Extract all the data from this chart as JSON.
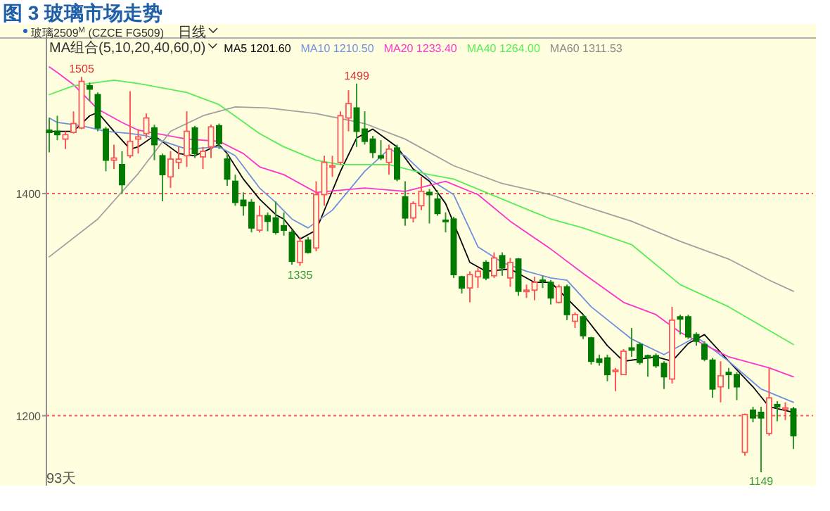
{
  "chart_data": {
    "type": "candlestick",
    "title": "图 3  玻璃市场走势",
    "categories": [
      null,
      null,
      null,
      null,
      null,
      null,
      null,
      null,
      null,
      null,
      null,
      null,
      null,
      null,
      null,
      null,
      null,
      null,
      null,
      null,
      null,
      null,
      null,
      null,
      null,
      null,
      null,
      null,
      null,
      null,
      null,
      null,
      null,
      null,
      null,
      null,
      null,
      null,
      null,
      null,
      null,
      null,
      null,
      null,
      null,
      null,
      null,
      null,
      null,
      null,
      null,
      null,
      null,
      null,
      null,
      null,
      null,
      null,
      null,
      null,
      null,
      null,
      null,
      null,
      null,
      null,
      null,
      null,
      null,
      null,
      null,
      null,
      null,
      null,
      null,
      null,
      null,
      null,
      null,
      null,
      null,
      null,
      null,
      null,
      null,
      null,
      null,
      null,
      null,
      null,
      null,
      null,
      null
    ],
    "ohlc": [
      [
        1457,
        1468,
        1437,
        1455
      ],
      [
        1456,
        1470,
        1448,
        1453
      ],
      [
        1449,
        1456,
        1440,
        1453
      ],
      [
        1455,
        1474,
        1454,
        1463
      ],
      [
        1459,
        1505,
        1458,
        1501
      ],
      [
        1497,
        1500,
        1483,
        1494
      ],
      [
        1489,
        1491,
        1456,
        1459
      ],
      [
        1458,
        1460,
        1420,
        1430
      ],
      [
        1430,
        1444,
        1422,
        1432
      ],
      [
        1426,
        1438,
        1400,
        1408
      ],
      [
        1434,
        1492,
        1432,
        1447
      ],
      [
        1449,
        1458,
        1436,
        1451
      ],
      [
        1454,
        1472,
        1450,
        1468
      ],
      [
        1459,
        1462,
        1430,
        1444
      ],
      [
        1434,
        1436,
        1393,
        1417
      ],
      [
        1415,
        1438,
        1405,
        1431
      ],
      [
        1428,
        1442,
        1422,
        1431
      ],
      [
        1434,
        1474,
        1424,
        1456
      ],
      [
        1459,
        1461,
        1432,
        1436
      ],
      [
        1433,
        1442,
        1422,
        1438
      ],
      [
        1442,
        1462,
        1432,
        1460
      ],
      [
        1461,
        1463,
        1440,
        1445
      ],
      [
        1431,
        1436,
        1407,
        1413
      ],
      [
        1411,
        1417,
        1389,
        1392
      ],
      [
        1394,
        1401,
        1380,
        1389
      ],
      [
        1392,
        1395,
        1365,
        1369
      ],
      [
        1367,
        1389,
        1365,
        1380
      ],
      [
        1380,
        1383,
        1366,
        1375
      ],
      [
        1378,
        1393,
        1363,
        1365
      ],
      [
        1371,
        1383,
        1362,
        1367
      ],
      [
        1365,
        1367,
        1336,
        1339
      ],
      [
        1338,
        1361,
        1335,
        1357
      ],
      [
        1358,
        1361,
        1346,
        1347
      ],
      [
        1351,
        1411,
        1348,
        1399
      ],
      [
        1399,
        1434,
        1389,
        1428
      ],
      [
        1424,
        1434,
        1415,
        1425
      ],
      [
        1428,
        1474,
        1426,
        1470
      ],
      [
        1468,
        1493,
        1456,
        1481
      ],
      [
        1477,
        1499,
        1442,
        1456
      ],
      [
        1458,
        1474,
        1444,
        1447
      ],
      [
        1449,
        1452,
        1432,
        1437
      ],
      [
        1434,
        1448,
        1430,
        1432
      ],
      [
        1428,
        1444,
        1417,
        1440
      ],
      [
        1441,
        1444,
        1411,
        1413
      ],
      [
        1397,
        1411,
        1371,
        1378
      ],
      [
        1378,
        1393,
        1374,
        1391
      ],
      [
        1389,
        1415,
        1385,
        1402
      ],
      [
        1401,
        1404,
        1373,
        1399
      ],
      [
        1395,
        1403,
        1380,
        1382
      ],
      [
        1376,
        1383,
        1365,
        1375
      ],
      [
        1377,
        1379,
        1324,
        1327
      ],
      [
        1325,
        1326,
        1310,
        1315
      ],
      [
        1315,
        1330,
        1302,
        1327
      ],
      [
        1325,
        1333,
        1315,
        1330
      ],
      [
        1338,
        1340,
        1322,
        1324
      ],
      [
        1326,
        1347,
        1324,
        1342
      ],
      [
        1344,
        1347,
        1326,
        1333
      ],
      [
        1324,
        1342,
        1316,
        1338
      ],
      [
        1341,
        1342,
        1308,
        1312
      ],
      [
        1312,
        1318,
        1306,
        1313
      ],
      [
        1313,
        1325,
        1304,
        1320
      ],
      [
        1322,
        1326,
        1315,
        1321
      ],
      [
        1320,
        1322,
        1300,
        1306
      ],
      [
        1302,
        1318,
        1301,
        1316
      ],
      [
        1316,
        1318,
        1286,
        1291
      ],
      [
        1285,
        1293,
        1279,
        1291
      ],
      [
        1289,
        1291,
        1269,
        1272
      ],
      [
        1270,
        1271,
        1246,
        1249
      ],
      [
        1251,
        1255,
        1245,
        1248
      ],
      [
        1252,
        1255,
        1231,
        1237
      ],
      [
        1240,
        1243,
        1222,
        1241
      ],
      [
        1237,
        1260,
        1237,
        1258
      ],
      [
        1261,
        1279,
        1253,
        1259
      ],
      [
        1264,
        1266,
        1246,
        1248
      ],
      [
        1254,
        1255,
        1235,
        1252
      ],
      [
        1254,
        1256,
        1243,
        1245
      ],
      [
        1247,
        1249,
        1224,
        1235
      ],
      [
        1233,
        1298,
        1229,
        1286
      ],
      [
        1289,
        1291,
        1273,
        1287
      ],
      [
        1289,
        1291,
        1269,
        1271
      ],
      [
        1273,
        1275,
        1263,
        1267
      ],
      [
        1264,
        1267,
        1249,
        1251
      ],
      [
        1250,
        1252,
        1216,
        1224
      ],
      [
        1226,
        1249,
        1212,
        1236
      ],
      [
        1239,
        1243,
        1224,
        1237
      ],
      [
        1237,
        1239,
        1214,
        1226
      ],
      [
        1167,
        1202,
        1164,
        1201
      ],
      [
        1205,
        1208,
        1194,
        1198
      ],
      [
        1203,
        1208,
        1149,
        1198
      ],
      [
        1184,
        1243,
        1182,
        1216
      ],
      [
        1210,
        1213,
        1195,
        1208
      ],
      [
        1206,
        1212,
        1196,
        1207
      ],
      [
        1206,
        1208,
        1170,
        1182
      ]
    ],
    "ylim": [
      1137,
      1540
    ],
    "yticks": [
      1200,
      1400
    ],
    "grid": "y",
    "series": [
      {
        "name": "MA5 1201.60",
        "type": "line",
        "color": "#000000",
        "values": [
          1456,
          null,
          null,
          1456,
          null,
          1470,
          1473,
          null,
          1456,
          null,
          1440,
          1442,
          null,
          1452,
          null,
          null,
          1436,
          null,
          1434,
          null,
          null,
          1444,
          1436,
          null,
          1413,
          null,
          1395,
          null,
          1381,
          1377,
          null,
          1359,
          null,
          1367,
          null,
          null,
          1420,
          null,
          1450,
          null,
          1458,
          null,
          null,
          1442,
          null,
          1422,
          null,
          1411,
          null,
          1391,
          null,
          null,
          1338,
          null,
          1330,
          null,
          null,
          1332,
          null,
          null,
          1320,
          null,
          1320,
          null,
          null,
          null,
          1291,
          null,
          null,
          1263,
          null,
          1249,
          null,
          null,
          null,
          1253,
          null,
          1249,
          null,
          1265,
          null,
          1273,
          null,
          null,
          1249,
          null,
          null,
          1226,
          null,
          1208,
          null,
          null,
          1203
        ]
      },
      {
        "name": "MA10 1210.50",
        "type": "line",
        "color": "#6f8fe0",
        "values": [
          1468,
          1464,
          null,
          null,
          1461,
          null,
          null,
          1456,
          null,
          null,
          1454,
          null,
          1452,
          null,
          null,
          null,
          null,
          1440,
          null,
          null,
          null,
          1442,
          null,
          1434,
          null,
          null,
          1405,
          null,
          1392,
          null,
          1377,
          null,
          1369,
          null,
          null,
          1385,
          null,
          null,
          null,
          1420,
          null,
          null,
          1440,
          null,
          1434,
          null,
          null,
          1413,
          null,
          null,
          1399,
          null,
          null,
          1352,
          null,
          null,
          1338,
          null,
          null,
          1330,
          null,
          null,
          1324,
          null,
          1322,
          null,
          null,
          1298,
          null,
          null,
          null,
          null,
          1269,
          null,
          null,
          null,
          1255,
          null,
          null,
          null,
          1271,
          null,
          null,
          null,
          1249,
          null,
          null,
          null,
          1224,
          null,
          null,
          null,
          1212
        ]
      },
      {
        "name": "MA20 1233.40",
        "type": "line",
        "color": "#ff33cc",
        "values": [
          1514,
          1509,
          null,
          1498,
          null,
          null,
          1476,
          null,
          null,
          1464,
          null,
          1457,
          null,
          null,
          null,
          null,
          null,
          1449,
          null,
          null,
          null,
          1447,
          null,
          null,
          1436,
          null,
          1424,
          null,
          null,
          1417,
          null,
          null,
          null,
          1401,
          null,
          null,
          null,
          null,
          null,
          1405,
          null,
          null,
          null,
          null,
          1402,
          null,
          null,
          null,
          null,
          1411,
          null,
          null,
          null,
          1399,
          null,
          null,
          null,
          1375,
          null,
          null,
          null,
          null,
          1350,
          null,
          null,
          null,
          1328,
          null,
          null,
          null,
          null,
          1302,
          null,
          null,
          null,
          1291,
          null,
          null,
          1275,
          null,
          null,
          null,
          null,
          null,
          1253,
          null,
          null,
          null,
          null,
          1243,
          null,
          null,
          1235
        ]
      },
      {
        "name": "MA40 1264.00",
        "type": "line",
        "color": "#55ee55",
        "values": [
          1489,
          null,
          null,
          1497,
          null,
          null,
          null,
          null,
          1502,
          null,
          null,
          1499,
          null,
          null,
          null,
          null,
          null,
          1491,
          null,
          null,
          null,
          1480,
          null,
          null,
          null,
          null,
          1454,
          null,
          null,
          1442,
          null,
          null,
          null,
          1430,
          null,
          null,
          1426,
          null,
          null,
          null,
          null,
          null,
          1426,
          null,
          null,
          null,
          null,
          1417,
          null,
          null,
          1413,
          null,
          null,
          null,
          null,
          null,
          1395,
          null,
          null,
          null,
          null,
          null,
          1377,
          null,
          null,
          null,
          1369,
          null,
          null,
          null,
          null,
          null,
          1354,
          null,
          null,
          null,
          null,
          null,
          1318,
          null,
          null,
          null,
          null,
          null,
          1298,
          null,
          null,
          null,
          null,
          null,
          null,
          null,
          1264
        ]
      },
      {
        "name": "MA60 1311.53",
        "type": "line",
        "color": "#a0a0a0",
        "values": [
          1343,
          null,
          null,
          null,
          null,
          null,
          1377,
          null,
          null,
          null,
          null,
          1418,
          null,
          null,
          null,
          1456,
          null,
          null,
          null,
          1470,
          null,
          null,
          null,
          1478,
          null,
          null,
          null,
          1477,
          null,
          null,
          null,
          null,
          null,
          1472,
          null,
          null,
          null,
          null,
          null,
          1463,
          null,
          null,
          null,
          null,
          1449,
          null,
          null,
          null,
          null,
          null,
          1425,
          null,
          null,
          null,
          null,
          null,
          1409,
          null,
          null,
          null,
          null,
          null,
          1399,
          null,
          null,
          null,
          1389,
          null,
          null,
          null,
          null,
          null,
          1375,
          null,
          null,
          null,
          null,
          null,
          1357,
          null,
          null,
          null,
          null,
          null,
          1341,
          null,
          null,
          null,
          null,
          1322,
          null,
          null,
          1312
        ]
      }
    ],
    "annotations": [
      "玻璃2509$^{M}$ (CZCE FG509)",
      "日线",
      "MA组合(5,10,20,40,60,0)",
      "93天",
      {
        "text": "1505",
        "y": 1505
      },
      {
        "text": "1499",
        "y": 1499
      },
      {
        "text": "1335",
        "y": 1335
      },
      {
        "text": "1149",
        "y": 1149
      }
    ]
  }
}
